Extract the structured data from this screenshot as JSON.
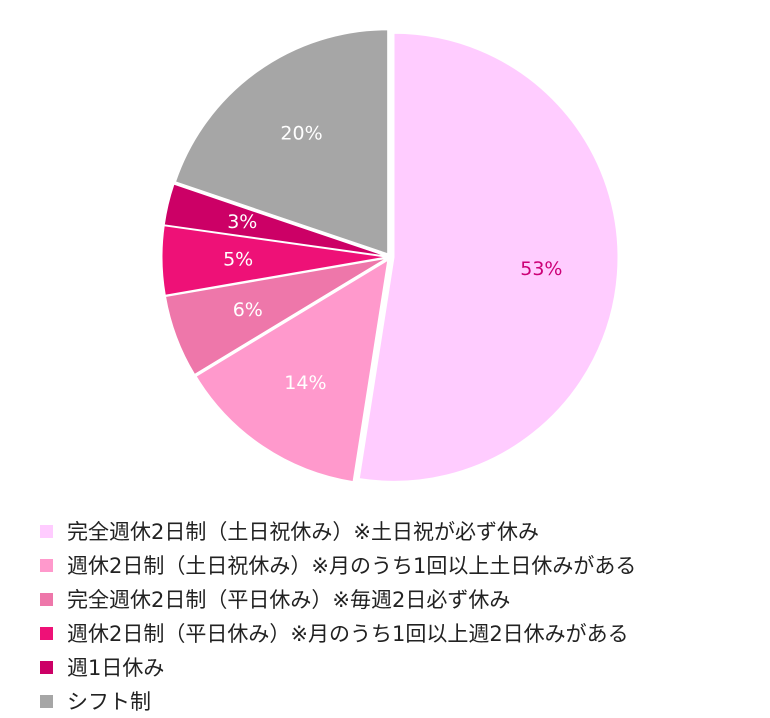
{
  "chart_data": {
    "type": "pie",
    "title": "",
    "start_angle_deg": 0,
    "direction": "clockwise",
    "legend_position": "bottom-left",
    "series": [
      {
        "categories": [
          "完全週休2日制（土日祝休み）※土日祝が必ず休み",
          "週休2日制（土日祝休み）※月のうち1回以上土日休みがある",
          "完全週休2日制（平日休み）※毎週2日必ず休み",
          "週休2日制（平日休み）※月のうち1回以上週2日休みがある",
          "週1日休み",
          "シフト制"
        ],
        "values": [
          53,
          14,
          6,
          5,
          3,
          20
        ],
        "value_labels": [
          "53%",
          "14%",
          "6%",
          "5%",
          "3%",
          "20%"
        ],
        "colors": [
          "#ffccff",
          "#ff99cc",
          "#ee77aa",
          "#ee1177",
          "#cc0066",
          "#a6a6a6"
        ],
        "label_colors": [
          "#cc0077",
          "#ffffff",
          "#ffffff",
          "#ffffff",
          "#ffffff",
          "#ffffff"
        ]
      }
    ]
  }
}
